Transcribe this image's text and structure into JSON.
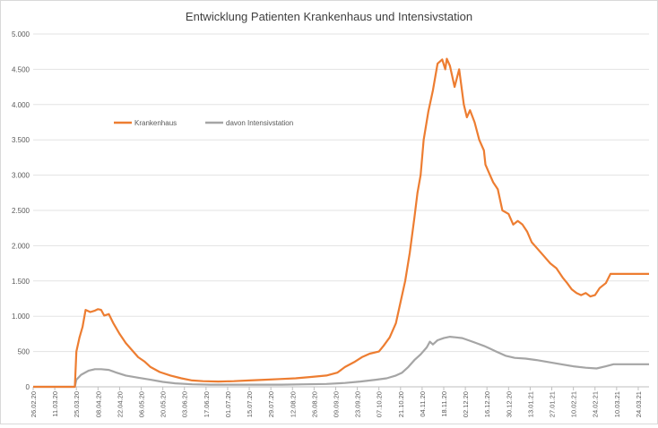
{
  "chart_data": {
    "type": "line",
    "title": "Entwicklung Patienten Krankenhaus und Intensivstation",
    "xlabel": "",
    "ylabel": "",
    "ylim": [
      0,
      5000
    ],
    "yticks": [
      0,
      500,
      1000,
      1500,
      2000,
      2500,
      3000,
      3500,
      4000,
      4500,
      5000
    ],
    "ytick_labels": [
      "0",
      "500",
      "1.000",
      "1.500",
      "2.000",
      "2.500",
      "3.000",
      "3.500",
      "4.000",
      "4.500",
      "5.000"
    ],
    "x_start": "2020-02-26",
    "x_end": "2021-03-31",
    "x_tick_labels": [
      "26.02.20",
      "11.03.20",
      "25.03.20",
      "08.04.20",
      "22.04.20",
      "06.05.20",
      "20.05.20",
      "03.06.20",
      "17.06.20",
      "01.07.20",
      "15.07.20",
      "29.07.20",
      "12.08.20",
      "26.08.20",
      "09.09.20",
      "23.09.20",
      "07.10.20",
      "21.10.20",
      "04.11.20",
      "18.11.20",
      "02.12.20",
      "16.12.20",
      "30.12.20",
      "13.01.21",
      "27.01.21",
      "10.02.21",
      "24.02.21",
      "10.03.21",
      "24.03.21"
    ],
    "grid": true,
    "legend_position": "upper-left",
    "series": [
      {
        "name": "Krankenhaus",
        "color": "#ED7D31",
        "points": [
          [
            "2020-02-26",
            0
          ],
          [
            "2020-03-24",
            0
          ],
          [
            "2020-03-25",
            500
          ],
          [
            "2020-03-27",
            700
          ],
          [
            "2020-03-29",
            850
          ],
          [
            "2020-03-31",
            1090
          ],
          [
            "2020-04-03",
            1060
          ],
          [
            "2020-04-06",
            1080
          ],
          [
            "2020-04-08",
            1100
          ],
          [
            "2020-04-10",
            1090
          ],
          [
            "2020-04-12",
            1010
          ],
          [
            "2020-04-15",
            1030
          ],
          [
            "2020-04-18",
            900
          ],
          [
            "2020-04-22",
            750
          ],
          [
            "2020-04-26",
            620
          ],
          [
            "2020-04-30",
            520
          ],
          [
            "2020-05-04",
            420
          ],
          [
            "2020-05-08",
            360
          ],
          [
            "2020-05-12",
            280
          ],
          [
            "2020-05-18",
            210
          ],
          [
            "2020-05-25",
            160
          ],
          [
            "2020-06-01",
            120
          ],
          [
            "2020-06-08",
            90
          ],
          [
            "2020-06-15",
            80
          ],
          [
            "2020-06-25",
            75
          ],
          [
            "2020-07-05",
            80
          ],
          [
            "2020-07-15",
            90
          ],
          [
            "2020-07-25",
            100
          ],
          [
            "2020-08-04",
            110
          ],
          [
            "2020-08-14",
            120
          ],
          [
            "2020-08-24",
            140
          ],
          [
            "2020-09-03",
            160
          ],
          [
            "2020-09-10",
            200
          ],
          [
            "2020-09-15",
            280
          ],
          [
            "2020-09-21",
            350
          ],
          [
            "2020-09-26",
            420
          ],
          [
            "2020-10-01",
            470
          ],
          [
            "2020-10-07",
            500
          ],
          [
            "2020-10-10",
            580
          ],
          [
            "2020-10-14",
            700
          ],
          [
            "2020-10-18",
            900
          ],
          [
            "2020-10-21",
            1200
          ],
          [
            "2020-10-24",
            1500
          ],
          [
            "2020-10-27",
            1900
          ],
          [
            "2020-10-30",
            2400
          ],
          [
            "2020-11-01",
            2750
          ],
          [
            "2020-11-03",
            3000
          ],
          [
            "2020-11-05",
            3500
          ],
          [
            "2020-11-08",
            3900
          ],
          [
            "2020-11-11",
            4200
          ],
          [
            "2020-11-14",
            4580
          ],
          [
            "2020-11-17",
            4640
          ],
          [
            "2020-11-19",
            4500
          ],
          [
            "2020-11-20",
            4650
          ],
          [
            "2020-11-22",
            4550
          ],
          [
            "2020-11-25",
            4250
          ],
          [
            "2020-11-28",
            4500
          ],
          [
            "2020-12-01",
            4000
          ],
          [
            "2020-12-03",
            3820
          ],
          [
            "2020-12-05",
            3920
          ],
          [
            "2020-12-08",
            3750
          ],
          [
            "2020-12-11",
            3500
          ],
          [
            "2020-12-14",
            3350
          ],
          [
            "2020-12-15",
            3150
          ],
          [
            "2020-12-17",
            3050
          ],
          [
            "2020-12-20",
            2900
          ],
          [
            "2020-12-23",
            2800
          ],
          [
            "2020-12-26",
            2500
          ],
          [
            "2020-12-30",
            2450
          ],
          [
            "2021-01-02",
            2300
          ],
          [
            "2021-01-05",
            2350
          ],
          [
            "2021-01-08",
            2300
          ],
          [
            "2021-01-11",
            2200
          ],
          [
            "2021-01-14",
            2050
          ],
          [
            "2021-01-18",
            1950
          ],
          [
            "2021-01-22",
            1850
          ],
          [
            "2021-01-26",
            1750
          ],
          [
            "2021-01-30",
            1680
          ],
          [
            "2021-02-03",
            1550
          ],
          [
            "2021-02-06",
            1470
          ],
          [
            "2021-02-09",
            1380
          ],
          [
            "2021-02-12",
            1330
          ],
          [
            "2021-02-15",
            1300
          ],
          [
            "2021-02-18",
            1330
          ],
          [
            "2021-02-21",
            1280
          ],
          [
            "2021-02-24",
            1300
          ],
          [
            "2021-02-27",
            1400
          ],
          [
            "2021-03-03",
            1470
          ],
          [
            "2021-03-06",
            1600
          ],
          [
            "2021-03-31",
            1600
          ]
        ]
      },
      {
        "name": "davon Intensivstation",
        "color": "#A5A5A5",
        "points": [
          [
            "2020-02-26",
            0
          ],
          [
            "2020-03-24",
            0
          ],
          [
            "2020-03-25",
            100
          ],
          [
            "2020-03-28",
            170
          ],
          [
            "2020-04-02",
            230
          ],
          [
            "2020-04-06",
            250
          ],
          [
            "2020-04-10",
            250
          ],
          [
            "2020-04-15",
            240
          ],
          [
            "2020-04-20",
            200
          ],
          [
            "2020-04-26",
            160
          ],
          [
            "2020-05-04",
            130
          ],
          [
            "2020-05-12",
            100
          ],
          [
            "2020-05-20",
            70
          ],
          [
            "2020-05-28",
            50
          ],
          [
            "2020-06-08",
            35
          ],
          [
            "2020-06-20",
            30
          ],
          [
            "2020-07-05",
            30
          ],
          [
            "2020-07-20",
            30
          ],
          [
            "2020-08-05",
            30
          ],
          [
            "2020-08-20",
            35
          ],
          [
            "2020-09-03",
            40
          ],
          [
            "2020-09-15",
            55
          ],
          [
            "2020-09-25",
            75
          ],
          [
            "2020-10-05",
            100
          ],
          [
            "2020-10-12",
            120
          ],
          [
            "2020-10-18",
            160
          ],
          [
            "2020-10-22",
            200
          ],
          [
            "2020-10-26",
            280
          ],
          [
            "2020-10-30",
            380
          ],
          [
            "2020-11-03",
            460
          ],
          [
            "2020-11-07",
            560
          ],
          [
            "2020-11-09",
            640
          ],
          [
            "2020-11-11",
            600
          ],
          [
            "2020-11-14",
            660
          ],
          [
            "2020-11-18",
            690
          ],
          [
            "2020-11-22",
            710
          ],
          [
            "2020-11-26",
            700
          ],
          [
            "2020-11-30",
            690
          ],
          [
            "2020-12-04",
            660
          ],
          [
            "2020-12-09",
            620
          ],
          [
            "2020-12-14",
            580
          ],
          [
            "2020-12-18",
            540
          ],
          [
            "2020-12-22",
            500
          ],
          [
            "2020-12-28",
            440
          ],
          [
            "2021-01-03",
            410
          ],
          [
            "2021-01-10",
            400
          ],
          [
            "2021-01-17",
            380
          ],
          [
            "2021-01-25",
            350
          ],
          [
            "2021-02-02",
            320
          ],
          [
            "2021-02-10",
            290
          ],
          [
            "2021-02-18",
            270
          ],
          [
            "2021-02-25",
            260
          ],
          [
            "2021-03-03",
            290
          ],
          [
            "2021-03-08",
            320
          ],
          [
            "2021-03-31",
            320
          ]
        ]
      }
    ]
  }
}
